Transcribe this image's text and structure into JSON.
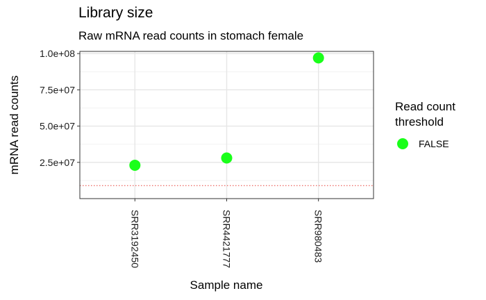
{
  "chart_data": {
    "type": "scatter",
    "title": "Library size",
    "subtitle": "Raw mRNA read counts in stomach female",
    "xlabel": "Sample name",
    "ylabel": "mRNA read counts",
    "categories": [
      "SRR3192450",
      "SRR4421777",
      "SRR980483"
    ],
    "series": [
      {
        "name": "FALSE",
        "values": [
          23000000,
          28000000,
          97000000
        ]
      }
    ],
    "ylim": [
      0,
      101500000
    ],
    "yticks": [
      25000000,
      50000000,
      75000000,
      100000000
    ],
    "ytick_labels": [
      "2.5e+07",
      "5.0e+07",
      "7.5e+07",
      "1.0e+08"
    ],
    "threshold": 9000000,
    "legend": {
      "title": "Read count threshold",
      "position": "right",
      "entries": [
        "FALSE"
      ]
    },
    "grid": true,
    "colors": {
      "point": "#1aff1a",
      "threshold": "#e8403a",
      "grid_major": "#e6e6e6",
      "grid_minor": "#f2f2f2",
      "border": "#333333"
    }
  }
}
